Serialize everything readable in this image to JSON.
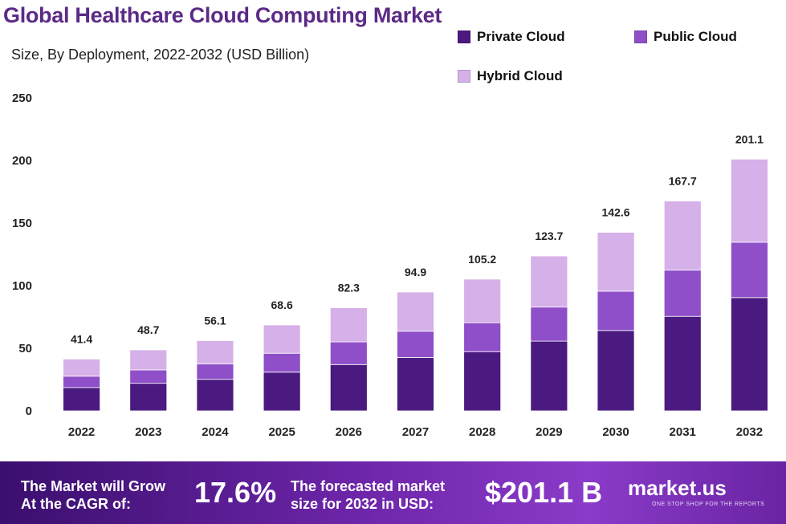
{
  "header": {
    "title": "Global Healthcare Cloud Computing Market",
    "subtitle": "Size, By Deployment, 2022-2032 (USD Billion)"
  },
  "legend": {
    "private": "Private Cloud",
    "public": "Public Cloud",
    "hybrid": "Hybrid Cloud"
  },
  "colors": {
    "private": "#4a1a80",
    "public": "#8e4fc8",
    "hybrid": "#d6b0e8",
    "title": "#5b2a86"
  },
  "chart_data": {
    "type": "bar",
    "stacked": true,
    "categories": [
      "2022",
      "2023",
      "2024",
      "2025",
      "2026",
      "2027",
      "2028",
      "2029",
      "2030",
      "2031",
      "2032"
    ],
    "series": [
      {
        "name": "Private Cloud",
        "values": [
          18.6,
          22.0,
          25.2,
          30.9,
          37.0,
          42.7,
          47.3,
          55.7,
          64.2,
          75.5,
          90.5
        ]
      },
      {
        "name": "Public Cloud",
        "values": [
          9.1,
          10.7,
          12.3,
          15.1,
          18.1,
          20.9,
          23.1,
          27.2,
          31.4,
          36.9,
          44.2
        ]
      },
      {
        "name": "Hybrid Cloud",
        "values": [
          13.7,
          16.0,
          18.6,
          22.6,
          27.2,
          31.3,
          34.8,
          40.8,
          47.0,
          55.3,
          66.4
        ]
      }
    ],
    "totals": [
      "41.4",
      "48.7",
      "56.1",
      "68.6",
      "82.3",
      "94.9",
      "105.2",
      "123.7",
      "142.6",
      "167.7",
      "201.1"
    ],
    "ylim": [
      0,
      250
    ],
    "yticks": [
      "0",
      "50",
      "100",
      "150",
      "200",
      "250"
    ],
    "grid": false,
    "legend_position": "top-right"
  },
  "footer": {
    "cagr_label_line1": "The Market will Grow",
    "cagr_label_line2": "At the CAGR of:",
    "cagr_value": "17.6%",
    "forecast_label_line1": "The forecasted market",
    "forecast_label_line2": "size for 2032 in USD:",
    "forecast_value": "$201.1 B",
    "brand": "market.us",
    "brand_tagline": "ONE STOP SHOP FOR THE REPORTS"
  }
}
